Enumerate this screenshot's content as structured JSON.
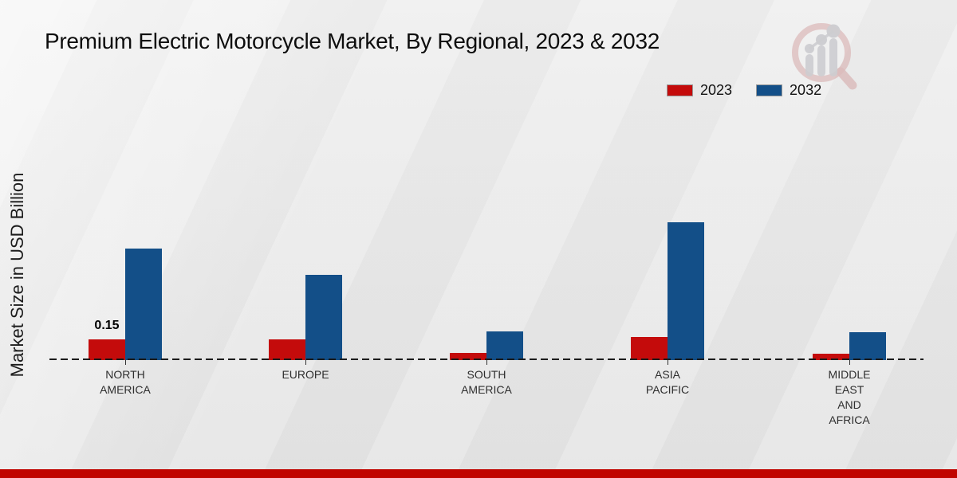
{
  "header": {
    "title": "Premium Electric Motorcycle Market, By Regional, 2023 & 2032"
  },
  "legend": {
    "position": "top-right",
    "items": [
      {
        "label": "2023",
        "color": "#C40B0B"
      },
      {
        "label": "2032",
        "color": "#134F88"
      }
    ]
  },
  "colors": {
    "bar_2023": "#C40B0B",
    "bar_2032": "#134F88",
    "footer_band": "#C00500",
    "baseline": "#1B1B1B",
    "background": "#EAEAEA"
  },
  "watermark": {
    "name": "magnifier-bar-chart-logo"
  },
  "chart_data": {
    "type": "bar",
    "title": "Premium Electric Motorcycle Market, By Regional, 2023 & 2032",
    "xlabel": "",
    "ylabel": "Market Size in USD Billion",
    "categories": [
      "NORTH\nAMERICA",
      "EUROPE",
      "SOUTH\nAMERICA",
      "ASIA\nPACIFIC",
      "MIDDLE\nEAST\nAND\nAFRICA"
    ],
    "series": [
      {
        "name": "2023",
        "color": "#C40B0B",
        "values": [
          0.15,
          0.15,
          0.05,
          0.17,
          0.045
        ]
      },
      {
        "name": "2032",
        "color": "#134F88",
        "values": [
          0.81,
          0.62,
          0.21,
          1.0,
          0.2
        ]
      }
    ],
    "ylim": [
      0,
      1.05
    ],
    "grid": false,
    "y_axis_ticks_visible": false,
    "legend_position": "top-right",
    "value_labels": [
      {
        "category_index": 0,
        "series_index": 0,
        "text": "0.15"
      }
    ]
  }
}
